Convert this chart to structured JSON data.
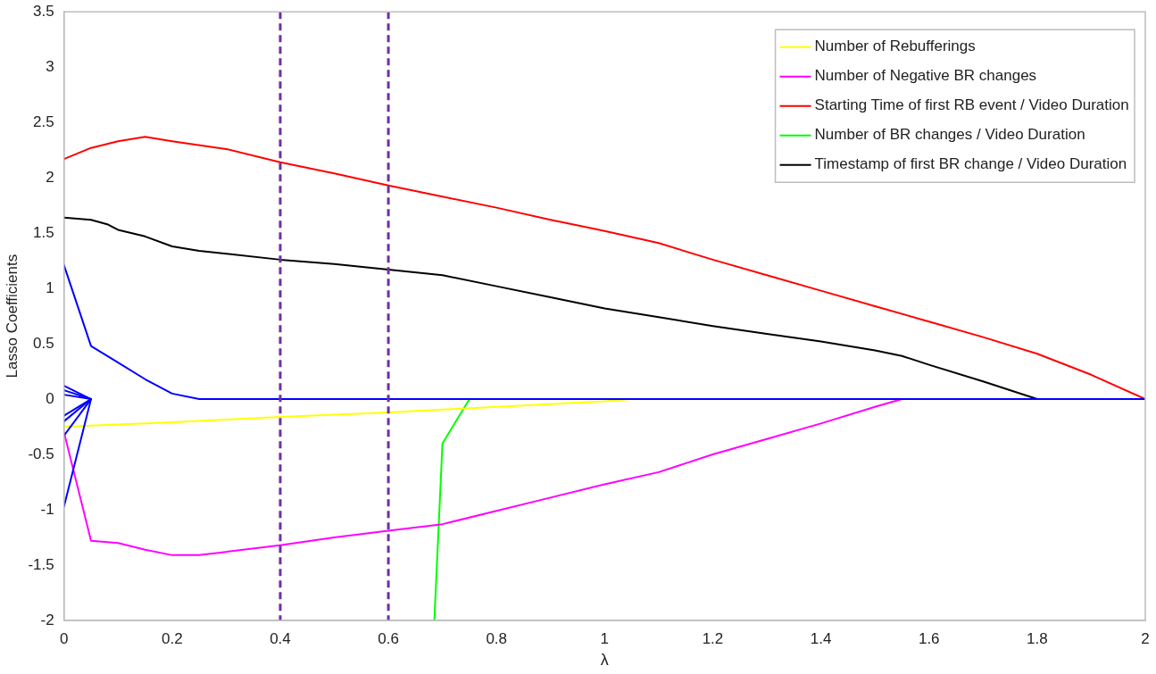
{
  "chart_data": {
    "type": "line",
    "xlabel": "λ",
    "ylabel": "Lasso Coefficients",
    "xlim": [
      0,
      2
    ],
    "xticks": [
      0,
      0.2,
      0.4,
      0.6,
      0.8,
      1,
      1.2,
      1.4,
      1.6,
      1.8,
      2
    ],
    "ylim": [
      -2,
      3.5
    ],
    "yticks": [
      -2,
      -1.5,
      -1,
      -0.5,
      0,
      0.5,
      1,
      1.5,
      2,
      2.5,
      3,
      3.5
    ],
    "grid": false,
    "legend": "top right",
    "marker": "none",
    "line_style": "solid",
    "ref_lines": [
      {
        "axis": "x",
        "value": 0.4,
        "color": "#7030a0",
        "line_style": "dashed"
      },
      {
        "axis": "x",
        "value": 0.6,
        "color": "#7030a0",
        "line_style": "dashed"
      }
    ],
    "series": [
      {
        "color": "#0000ff",
        "x": [
          0,
          0.05,
          0.1,
          0.15,
          0.2,
          0.25,
          2
        ],
        "values": [
          1.21,
          0.48,
          0.33,
          0.18,
          0.05,
          0,
          0
        ]
      },
      {
        "color": "#0000ff",
        "x": [
          0,
          0.05
        ],
        "values": [
          0.12,
          0
        ]
      },
      {
        "color": "#0000ff",
        "x": [
          0,
          0.05
        ],
        "values": [
          0.08,
          0
        ]
      },
      {
        "color": "#0000ff",
        "x": [
          0,
          0.05
        ],
        "values": [
          0.04,
          0
        ]
      },
      {
        "color": "#0000ff",
        "x": [
          0,
          0.05
        ],
        "values": [
          -0.15,
          0
        ]
      },
      {
        "color": "#0000ff",
        "x": [
          0,
          0.05
        ],
        "values": [
          -0.2,
          0
        ]
      },
      {
        "color": "#0000ff",
        "x": [
          0,
          0.05
        ],
        "values": [
          -0.33,
          0
        ]
      },
      {
        "color": "#0000ff",
        "x": [
          0,
          0.05
        ],
        "values": [
          -0.97,
          0
        ]
      },
      {
        "name": "Number of Rebufferings",
        "color": "#ffff00",
        "x": [
          0,
          0.2,
          0.4,
          0.6,
          0.8,
          1,
          1.05
        ],
        "values": [
          -0.25,
          -0.21,
          -0.16,
          -0.12,
          -0.07,
          -0.02,
          0
        ]
      },
      {
        "name": "Number of Negative BR changes",
        "color": "#ff00ff",
        "x": [
          0,
          0.05,
          0.1,
          0.15,
          0.2,
          0.25,
          0.3,
          0.4,
          0.5,
          0.6,
          0.7,
          0.8,
          0.9,
          1,
          1.1,
          1.2,
          1.3,
          1.4,
          1.5,
          1.55
        ],
        "values": [
          -0.3,
          -1.28,
          -1.3,
          -1.36,
          -1.41,
          -1.41,
          -1.38,
          -1.32,
          -1.25,
          -1.19,
          -1.13,
          -1.01,
          -0.89,
          -0.77,
          -0.66,
          -0.5,
          -0.36,
          -0.22,
          -0.07,
          0
        ]
      },
      {
        "name": "Starting Time of first RB event / Video Duration",
        "color": "#ff0000",
        "x": [
          0,
          0.05,
          0.1,
          0.15,
          0.2,
          0.3,
          0.4,
          0.5,
          0.6,
          0.7,
          0.8,
          0.9,
          1,
          1.1,
          1.2,
          1.3,
          1.4,
          1.5,
          1.6,
          1.7,
          1.8,
          1.9,
          2
        ],
        "values": [
          2.17,
          2.27,
          2.33,
          2.37,
          2.33,
          2.26,
          2.14,
          2.04,
          1.93,
          1.83,
          1.73,
          1.62,
          1.52,
          1.41,
          1.26,
          1.12,
          0.98,
          0.84,
          0.7,
          0.56,
          0.41,
          0.22,
          0
        ]
      },
      {
        "name": "Number of BR changes / Video Duration",
        "color": "#00ff00",
        "x": [
          0.685,
          0.7,
          0.75
        ],
        "values": [
          -2,
          -0.4,
          0
        ]
      },
      {
        "name": "Timestamp of first BR change / Video Duration",
        "color": "#000000",
        "x": [
          0,
          0.05,
          0.08,
          0.1,
          0.15,
          0.2,
          0.25,
          0.4,
          0.5,
          0.6,
          0.7,
          0.8,
          0.9,
          1,
          1.1,
          1.2,
          1.3,
          1.4,
          1.5,
          1.55,
          1.6,
          1.7,
          1.8
        ],
        "values": [
          1.64,
          1.62,
          1.58,
          1.53,
          1.47,
          1.38,
          1.34,
          1.26,
          1.22,
          1.17,
          1.12,
          1.02,
          0.92,
          0.82,
          0.74,
          0.66,
          0.59,
          0.52,
          0.44,
          0.39,
          0.31,
          0.16,
          0
        ]
      }
    ]
  }
}
